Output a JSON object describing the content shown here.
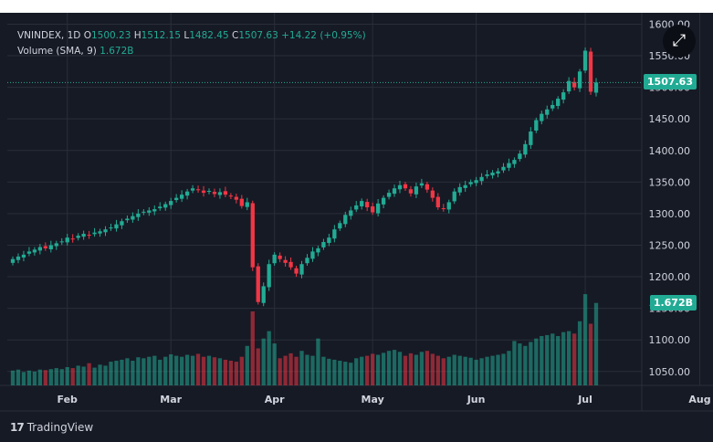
{
  "legend": {
    "symbol": "VNINDEX, 1D",
    "open_label": "O",
    "open": "1500.23",
    "high_label": "H",
    "high": "1512.15",
    "low_label": "L",
    "low": "1482.45",
    "close_label": "C",
    "close": "1507.63",
    "change": "+14.22 (+0.95%)",
    "volume_label": "Volume (SMA, 9)",
    "volume_value": "1.672B"
  },
  "price_tag": "1507.63",
  "volume_tag": "1.672B",
  "branding": {
    "logo_mark": "17",
    "name": "TradingView"
  },
  "colors": {
    "up": "#22ab94",
    "down": "#f23645",
    "background": "#161a25",
    "grid": "#2a2e39",
    "text": "#d1d4dc"
  },
  "icons": {
    "expand": "expand-icon"
  },
  "chart_data": {
    "type": "candlestick",
    "xlabel": "",
    "ylabel": "",
    "ylim": [
      1028,
      1618
    ],
    "y_ticks": [
      "1050.00",
      "1100.00",
      "1150.00",
      "1200.00",
      "1250.00",
      "1300.00",
      "1350.00",
      "1400.00",
      "1450.00",
      "1500.00",
      "1550.00",
      "1600.00"
    ],
    "x_ticks": [
      {
        "label": "Feb",
        "index": 10
      },
      {
        "label": "Mar",
        "index": 29
      },
      {
        "label": "Apr",
        "index": 48
      },
      {
        "label": "May",
        "index": 66
      },
      {
        "label": "Jun",
        "index": 85
      },
      {
        "label": "Jul",
        "index": 105
      },
      {
        "label": "Aug",
        "index": 126
      }
    ],
    "grid": true,
    "last_close": 1507.63,
    "volume_range_b": [
      0,
      2.0
    ],
    "closes": [
      1228,
      1232,
      1235,
      1240,
      1243,
      1247,
      1245,
      1250,
      1253,
      1256,
      1262,
      1260,
      1265,
      1268,
      1266,
      1270,
      1272,
      1275,
      1278,
      1283,
      1288,
      1292,
      1296,
      1300,
      1303,
      1305,
      1307,
      1311,
      1315,
      1320,
      1325,
      1330,
      1335,
      1340,
      1338,
      1333,
      1336,
      1331,
      1334,
      1330,
      1328,
      1322,
      1312,
      1318,
      1215,
      1160,
      1185,
      1220,
      1235,
      1228,
      1222,
      1215,
      1205,
      1220,
      1230,
      1240,
      1245,
      1255,
      1262,
      1275,
      1285,
      1298,
      1305,
      1313,
      1320,
      1310,
      1302,
      1316,
      1325,
      1333,
      1340,
      1345,
      1340,
      1332,
      1343,
      1348,
      1338,
      1325,
      1310,
      1308,
      1318,
      1335,
      1342,
      1345,
      1350,
      1353,
      1358,
      1362,
      1365,
      1367,
      1374,
      1380,
      1385,
      1395,
      1410,
      1430,
      1448,
      1458,
      1465,
      1472,
      1482,
      1492,
      1510,
      1500,
      1525,
      1558,
      1493,
      1507.63
    ],
    "volumes_b": [
      0.3,
      0.32,
      0.27,
      0.3,
      0.28,
      0.32,
      0.31,
      0.33,
      0.35,
      0.33,
      0.37,
      0.35,
      0.4,
      0.38,
      0.45,
      0.36,
      0.42,
      0.4,
      0.48,
      0.5,
      0.52,
      0.55,
      0.5,
      0.57,
      0.55,
      0.58,
      0.6,
      0.52,
      0.58,
      0.63,
      0.6,
      0.58,
      0.62,
      0.6,
      0.64,
      0.58,
      0.6,
      0.57,
      0.55,
      0.52,
      0.5,
      0.48,
      0.58,
      0.8,
      1.5,
      0.75,
      0.95,
      1.1,
      0.85,
      0.55,
      0.6,
      0.65,
      0.58,
      0.7,
      0.62,
      0.6,
      0.95,
      0.58,
      0.54,
      0.52,
      0.5,
      0.48,
      0.46,
      0.55,
      0.58,
      0.6,
      0.64,
      0.62,
      0.66,
      0.7,
      0.72,
      0.68,
      0.6,
      0.65,
      0.62,
      0.68,
      0.7,
      0.64,
      0.6,
      0.55,
      0.58,
      0.62,
      0.6,
      0.58,
      0.56,
      0.52,
      0.55,
      0.58,
      0.6,
      0.62,
      0.64,
      0.7,
      0.9,
      0.85,
      0.8,
      0.88,
      0.95,
      1.0,
      1.02,
      1.05,
      1.0,
      1.08,
      1.1,
      1.05,
      1.3,
      1.85,
      1.25,
      1.672
    ]
  }
}
